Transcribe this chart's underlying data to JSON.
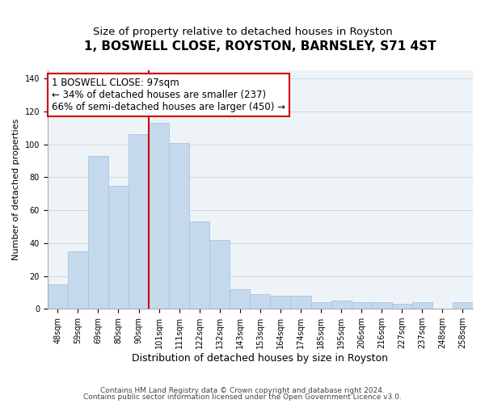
{
  "title": "1, BOSWELL CLOSE, ROYSTON, BARNSLEY, S71 4ST",
  "subtitle": "Size of property relative to detached houses in Royston",
  "xlabel": "Distribution of detached houses by size in Royston",
  "ylabel": "Number of detached properties",
  "categories": [
    "48sqm",
    "59sqm",
    "69sqm",
    "80sqm",
    "90sqm",
    "101sqm",
    "111sqm",
    "122sqm",
    "132sqm",
    "143sqm",
    "153sqm",
    "164sqm",
    "174sqm",
    "185sqm",
    "195sqm",
    "206sqm",
    "216sqm",
    "227sqm",
    "237sqm",
    "248sqm",
    "258sqm"
  ],
  "values": [
    15,
    35,
    93,
    75,
    106,
    113,
    101,
    53,
    42,
    12,
    9,
    8,
    8,
    4,
    5,
    4,
    4,
    3,
    4,
    0,
    4
  ],
  "bar_color": "#c5d9ed",
  "bar_edge_color": "#a8c4de",
  "vline_color": "#cc0000",
  "vline_x_index": 4.5,
  "annotation_line1": "1 BOSWELL CLOSE: 97sqm",
  "annotation_line2": "← 34% of detached houses are smaller (237)",
  "annotation_line3": "66% of semi-detached houses are larger (450) →",
  "annotation_box_color": "#ffffff",
  "annotation_box_edge_color": "#cc0000",
  "ylim": [
    0,
    145
  ],
  "yticks": [
    0,
    20,
    40,
    60,
    80,
    100,
    120,
    140
  ],
  "footer1": "Contains HM Land Registry data © Crown copyright and database right 2024.",
  "footer2": "Contains public sector information licensed under the Open Government Licence v3.0.",
  "title_fontsize": 11,
  "subtitle_fontsize": 9.5,
  "xlabel_fontsize": 9,
  "ylabel_fontsize": 8,
  "tick_fontsize": 7,
  "footer_fontsize": 6.5,
  "annotation_fontsize": 8.5,
  "grid_color": "#d0d8e0",
  "bg_color": "#eef3f8"
}
